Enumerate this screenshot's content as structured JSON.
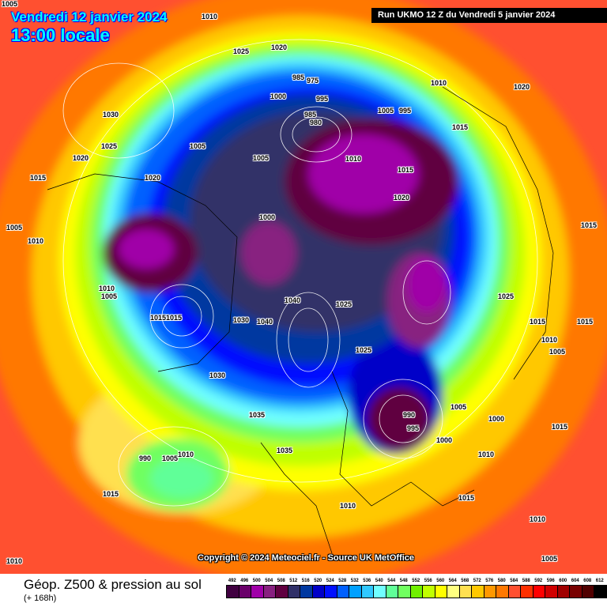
{
  "header": {
    "date": "Vendredi 12 janvier 2024",
    "time": "13:00 locale",
    "run": "Run UKMO 12 Z du Vendredi 5 janvier 2024"
  },
  "copyright": "Copyright © 2024 Meteociel.fr - Source UK MetOffice",
  "footer": {
    "title": "Géop. Z500 & pression au sol",
    "subtitle": "(+ 168h)"
  },
  "legend": {
    "ticks": [
      "492",
      "496",
      "500",
      "504",
      "508",
      "512",
      "516",
      "520",
      "524",
      "528",
      "532",
      "536",
      "540",
      "544",
      "548",
      "552",
      "556",
      "560",
      "564",
      "568",
      "572",
      "576",
      "580",
      "584",
      "588",
      "592",
      "596",
      "600",
      "604",
      "608",
      "612"
    ],
    "colors": [
      "#400040",
      "#6a006a",
      "#a000a8",
      "#882080",
      "#600040",
      "#303068",
      "#0038a0",
      "#0000c8",
      "#0010ff",
      "#0060ff",
      "#00a0ff",
      "#30c8ff",
      "#70ffff",
      "#60ff98",
      "#70ff60",
      "#70f000",
      "#c0ff00",
      "#ffff00",
      "#ffff80",
      "#ffe050",
      "#ffc800",
      "#ff9800",
      "#ff7800",
      "#ff5030",
      "#ff3000",
      "#ff0000",
      "#d00000",
      "#a00000",
      "#780000",
      "#500000",
      "#000000"
    ]
  },
  "pressure_labels": [
    "1005",
    "1010",
    "1025",
    "1020",
    "1030",
    "1025",
    "1020",
    "1015",
    "1005",
    "1010",
    "985",
    "975",
    "995",
    "1000",
    "985",
    "980",
    "1005",
    "995",
    "1010",
    "1005",
    "1015",
    "1010",
    "1015",
    "1020",
    "1005",
    "1000",
    "1020",
    "1040",
    "1010",
    "1005",
    "1015",
    "1030",
    "1040",
    "1025",
    "1015",
    "1025",
    "1030",
    "1035",
    "990",
    "995",
    "1005",
    "1000",
    "1015",
    "1010",
    "1000",
    "990",
    "1005",
    "1010",
    "1015",
    "1035",
    "1010",
    "1015",
    "1010",
    "1005",
    "1020",
    "1025",
    "1015",
    "1010",
    "1015",
    "1015",
    "1005",
    "1010"
  ]
}
